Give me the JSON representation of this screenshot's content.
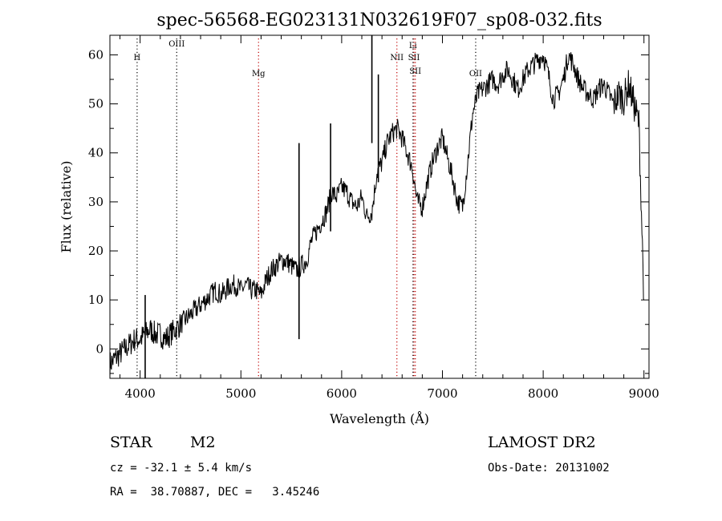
{
  "chart_data": {
    "type": "line",
    "title": "spec-56568-EG023131N032619F07_sp08-032.fits",
    "xlabel": "Wavelength (Å)",
    "ylabel": "Flux (relative)",
    "xlim": [
      3700,
      9050
    ],
    "ylim": [
      -6,
      64
    ],
    "xticks": [
      4000,
      5000,
      6000,
      7000,
      8000,
      9000
    ],
    "yticks": [
      0,
      10,
      20,
      30,
      40,
      50,
      60
    ],
    "grid": false,
    "series": [
      {
        "color": "#000000",
        "x": [
          3700,
          3750,
          3800,
          3850,
          3900,
          3950,
          4000,
          4050,
          4100,
          4150,
          4200,
          4250,
          4300,
          4350,
          4400,
          4450,
          4500,
          4550,
          4600,
          4650,
          4700,
          4750,
          4800,
          4850,
          4900,
          4950,
          5000,
          5050,
          5100,
          5150,
          5200,
          5250,
          5300,
          5350,
          5400,
          5450,
          5500,
          5550,
          5600,
          5650,
          5700,
          5750,
          5800,
          5850,
          5900,
          5950,
          6000,
          6050,
          6100,
          6150,
          6200,
          6250,
          6300,
          6350,
          6400,
          6450,
          6500,
          6550,
          6600,
          6650,
          6700,
          6750,
          6800,
          6850,
          6900,
          6950,
          7000,
          7050,
          7100,
          7150,
          7200,
          7250,
          7300,
          7350,
          7400,
          7450,
          7500,
          7550,
          7600,
          7650,
          7700,
          7750,
          7800,
          7850,
          7900,
          7950,
          8000,
          8050,
          8100,
          8150,
          8200,
          8250,
          8300,
          8350,
          8400,
          8450,
          8500,
          8550,
          8600,
          8650,
          8700,
          8750,
          8800,
          8850,
          8900,
          8950,
          9000
        ],
        "y": [
          -3,
          -2,
          -1,
          0,
          1,
          2,
          2,
          3,
          4,
          3,
          3,
          2,
          3,
          4,
          5,
          6,
          7,
          8,
          9,
          10,
          11,
          12,
          11,
          12,
          13,
          13,
          12,
          13,
          12,
          12,
          11,
          14,
          16,
          17,
          18,
          18,
          17,
          16,
          17,
          18,
          22,
          24,
          26,
          28,
          32,
          31,
          33,
          32,
          30,
          29,
          31,
          27,
          28,
          36,
          38,
          42,
          44,
          45,
          43,
          40,
          37,
          30,
          29,
          34,
          38,
          41,
          43,
          39,
          35,
          30,
          29,
          38,
          48,
          52,
          53,
          54,
          55,
          54,
          56,
          57,
          55,
          53,
          55,
          57,
          58,
          59,
          60,
          56,
          51,
          52,
          55,
          60,
          58,
          55,
          53,
          52,
          51,
          53,
          54,
          52,
          50,
          52,
          51,
          54,
          50,
          46,
          10
        ],
        "spikes": [
          {
            "x": 4050,
            "top": 11
          },
          {
            "x": 5577,
            "top": 42
          },
          {
            "x": 5577,
            "bottom": 2
          },
          {
            "x": 5890,
            "top": 46
          },
          {
            "x": 6300,
            "top": 64
          },
          {
            "x": 6364,
            "top": 56
          }
        ]
      }
    ],
    "line_markers": [
      {
        "label": "H",
        "x": 3970,
        "color": "#000000"
      },
      {
        "label": "OIII",
        "x": 4363,
        "color": "#000000"
      },
      {
        "label": "Mg",
        "x": 5175,
        "color": "#c00000"
      },
      {
        "label": "NII",
        "x": 6548,
        "color": "#c00000"
      },
      {
        "label": "Li",
        "x": 6708,
        "color": "#000000"
      },
      {
        "label": "SII",
        "x": 6717,
        "color": "#c00000"
      },
      {
        "label": "SII",
        "x": 6731,
        "color": "#c00000"
      },
      {
        "label": "OII",
        "x": 7330,
        "color": "#000000"
      }
    ]
  },
  "info": {
    "class": "STAR",
    "subclass": "M2",
    "survey": "LAMOST DR2",
    "cz": "cz = -32.1 ± 5.4 km/s",
    "obs_date": "Obs-Date: 20131002",
    "coords": "RA =  38.70887, DEC =   3.45246"
  }
}
